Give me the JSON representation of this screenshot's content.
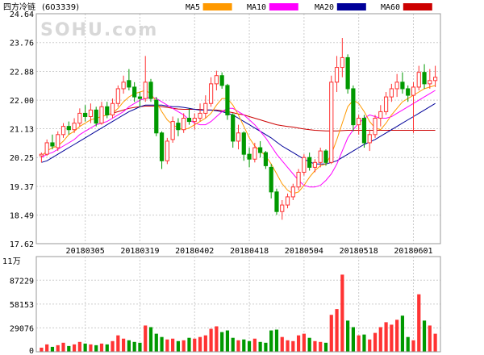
{
  "header": {
    "title": "四方冷链",
    "code": "(603339)",
    "watermark": "SOHU.com"
  },
  "colors": {
    "up": "#ff3333",
    "down": "#009900",
    "ma5": "#ff9900",
    "ma10": "#ff00ff",
    "ma20": "#000099",
    "ma60": "#cc0000",
    "grid": "#cccccc",
    "frame": "#999999"
  },
  "legend": [
    {
      "label": "MA5",
      "key": "ma5"
    },
    {
      "label": "MA10",
      "key": "ma10"
    },
    {
      "label": "MA20",
      "key": "ma20"
    },
    {
      "label": "MA60",
      "key": "ma60"
    }
  ],
  "chart_data": {
    "type": "candlestick",
    "price_axis": {
      "ticks": [
        "24.64",
        "23.76",
        "22.88",
        "22.00",
        "21.13",
        "20.25",
        "19.37",
        "18.49",
        "17.62"
      ],
      "ylim": [
        17.62,
        24.64
      ]
    },
    "volume_axis": {
      "unit": "11万",
      "ticks": [
        "87229",
        "58153",
        "29076",
        "0"
      ],
      "ylim": [
        0,
        116000
      ]
    },
    "x_labels": [
      {
        "label": "20180305",
        "index": 8
      },
      {
        "label": "20180319",
        "index": 18
      },
      {
        "label": "20180402",
        "index": 28
      },
      {
        "label": "20180418",
        "index": 38
      },
      {
        "label": "20180504",
        "index": 48
      },
      {
        "label": "20180518",
        "index": 58
      },
      {
        "label": "20180601",
        "index": 68
      }
    ],
    "ohlc": [
      [
        20.3,
        20.4,
        20.1,
        20.35
      ],
      [
        20.35,
        20.8,
        20.3,
        20.7
      ],
      [
        20.7,
        20.95,
        20.5,
        20.6
      ],
      [
        20.55,
        21.05,
        20.45,
        20.95
      ],
      [
        20.95,
        21.3,
        20.85,
        21.2
      ],
      [
        21.2,
        21.35,
        20.95,
        21.1
      ],
      [
        21.1,
        21.45,
        21.0,
        21.3
      ],
      [
        21.3,
        21.75,
        21.2,
        21.6
      ],
      [
        21.6,
        21.85,
        21.35,
        21.5
      ],
      [
        21.5,
        21.9,
        21.3,
        21.7
      ],
      [
        21.7,
        21.8,
        21.2,
        21.3
      ],
      [
        21.3,
        21.95,
        21.25,
        21.8
      ],
      [
        21.8,
        21.95,
        21.45,
        21.55
      ],
      [
        21.55,
        22.05,
        21.45,
        21.9
      ],
      [
        21.9,
        22.45,
        21.8,
        22.35
      ],
      [
        22.35,
        22.75,
        22.2,
        22.55
      ],
      [
        22.6,
        22.95,
        22.3,
        22.4
      ],
      [
        22.4,
        22.55,
        21.95,
        22.1
      ],
      [
        22.1,
        22.25,
        21.8,
        22.05
      ],
      [
        22.05,
        23.35,
        21.95,
        22.55
      ],
      [
        22.55,
        22.65,
        21.95,
        22.05
      ],
      [
        22.0,
        22.1,
        20.9,
        21.0
      ],
      [
        21.0,
        21.05,
        19.9,
        20.15
      ],
      [
        20.15,
        20.85,
        20.05,
        20.75
      ],
      [
        20.8,
        21.5,
        20.7,
        21.35
      ],
      [
        21.3,
        21.45,
        20.9,
        21.1
      ],
      [
        21.1,
        21.6,
        21.0,
        21.45
      ],
      [
        21.45,
        21.75,
        21.25,
        21.35
      ],
      [
        21.35,
        21.6,
        21.1,
        21.45
      ],
      [
        21.45,
        21.9,
        21.35,
        21.6
      ],
      [
        21.6,
        22.15,
        21.45,
        21.9
      ],
      [
        21.9,
        22.7,
        21.8,
        22.5
      ],
      [
        22.5,
        22.9,
        22.3,
        22.75
      ],
      [
        22.75,
        22.85,
        22.35,
        22.45
      ],
      [
        22.45,
        22.5,
        21.4,
        21.55
      ],
      [
        21.55,
        21.6,
        20.55,
        20.75
      ],
      [
        20.75,
        21.25,
        20.5,
        21.0
      ],
      [
        21.0,
        21.05,
        20.15,
        20.35
      ],
      [
        20.35,
        20.55,
        19.95,
        20.2
      ],
      [
        20.2,
        20.7,
        20.1,
        20.55
      ],
      [
        20.55,
        20.75,
        20.25,
        20.4
      ],
      [
        20.4,
        20.45,
        19.9,
        20.0
      ],
      [
        19.95,
        20.05,
        19.0,
        19.2
      ],
      [
        19.2,
        19.3,
        18.5,
        18.6
      ],
      [
        18.6,
        18.95,
        18.35,
        18.8
      ],
      [
        18.8,
        19.15,
        18.7,
        19.05
      ],
      [
        19.05,
        19.45,
        18.95,
        19.35
      ],
      [
        19.35,
        19.9,
        19.25,
        19.8
      ],
      [
        19.8,
        20.35,
        19.7,
        20.25
      ],
      [
        20.25,
        20.4,
        19.85,
        19.95
      ],
      [
        19.95,
        20.2,
        19.8,
        20.1
      ],
      [
        20.1,
        20.55,
        19.95,
        20.45
      ],
      [
        20.45,
        20.5,
        20.0,
        20.1
      ],
      [
        20.1,
        22.75,
        20.05,
        22.55
      ],
      [
        22.55,
        23.35,
        22.25,
        23.0
      ],
      [
        23.0,
        23.9,
        22.7,
        23.3
      ],
      [
        23.3,
        23.4,
        22.2,
        22.35
      ],
      [
        22.35,
        22.45,
        21.05,
        21.25
      ],
      [
        21.25,
        21.55,
        20.95,
        21.45
      ],
      [
        21.45,
        21.55,
        20.55,
        20.7
      ],
      [
        20.7,
        21.1,
        20.45,
        20.95
      ],
      [
        20.95,
        21.55,
        20.85,
        21.45
      ],
      [
        21.45,
        21.85,
        21.2,
        21.65
      ],
      [
        21.65,
        22.25,
        21.55,
        22.1
      ],
      [
        22.1,
        22.5,
        21.95,
        22.35
      ],
      [
        22.35,
        22.8,
        22.1,
        22.55
      ],
      [
        22.55,
        22.85,
        22.2,
        22.35
      ],
      [
        22.35,
        22.45,
        21.95,
        22.15
      ],
      [
        22.15,
        22.55,
        21.0,
        22.4
      ],
      [
        22.4,
        23.05,
        22.3,
        22.85
      ],
      [
        22.85,
        23.1,
        22.35,
        22.5
      ],
      [
        22.5,
        22.95,
        22.35,
        22.6
      ],
      [
        22.6,
        23.05,
        22.4,
        22.7
      ]
    ],
    "ma5": [
      20.3,
      20.45,
      20.55,
      20.6,
      20.75,
      20.95,
      21.05,
      21.2,
      21.3,
      21.4,
      21.45,
      21.5,
      21.55,
      21.6,
      21.75,
      21.95,
      22.1,
      22.2,
      22.25,
      22.3,
      22.2,
      21.95,
      21.65,
      21.4,
      21.25,
      21.15,
      21.1,
      21.15,
      21.25,
      21.35,
      21.45,
      21.6,
      21.85,
      22.05,
      22.05,
      21.85,
      21.55,
      21.2,
      20.85,
      20.6,
      20.45,
      20.3,
      20.05,
      19.75,
      19.45,
      19.25,
      19.15,
      19.2,
      19.4,
      19.65,
      19.85,
      20.0,
      20.05,
      20.35,
      20.8,
      21.3,
      21.8,
      22.0,
      21.9,
      21.65,
      21.35,
      21.15,
      21.1,
      21.3,
      21.55,
      21.75,
      21.95,
      22.05,
      22.15,
      22.25,
      22.35,
      22.4,
      22.45
    ],
    "ma10": [
      20.25,
      20.35,
      20.4,
      20.5,
      20.6,
      20.7,
      20.8,
      20.95,
      21.05,
      21.15,
      21.25,
      21.3,
      21.35,
      21.45,
      21.55,
      21.65,
      21.8,
      21.9,
      22.0,
      22.05,
      22.1,
      22.05,
      21.95,
      21.85,
      21.75,
      21.65,
      21.55,
      21.4,
      21.3,
      21.25,
      21.25,
      21.35,
      21.5,
      21.65,
      21.75,
      21.75,
      21.65,
      21.55,
      21.4,
      21.25,
      21.05,
      20.85,
      20.6,
      20.35,
      20.15,
      19.95,
      19.75,
      19.55,
      19.4,
      19.35,
      19.35,
      19.4,
      19.55,
      19.75,
      20.05,
      20.45,
      20.85,
      21.1,
      21.3,
      21.45,
      21.55,
      21.5,
      21.45,
      21.45,
      21.5,
      21.6,
      21.7,
      21.8,
      21.9,
      22.0,
      22.1,
      22.2,
      22.3
    ],
    "ma20": [
      20.1,
      20.15,
      20.25,
      20.35,
      20.45,
      20.55,
      20.65,
      20.75,
      20.85,
      20.95,
      21.05,
      21.15,
      21.25,
      21.35,
      21.45,
      21.55,
      21.65,
      21.72,
      21.8,
      21.85,
      21.85,
      21.85,
      21.85,
      21.82,
      21.8,
      21.8,
      21.78,
      21.75,
      21.72,
      21.7,
      21.7,
      21.7,
      21.68,
      21.65,
      21.6,
      21.55,
      21.45,
      21.35,
      21.25,
      21.15,
      21.05,
      20.95,
      20.85,
      20.72,
      20.6,
      20.5,
      20.4,
      20.3,
      20.2,
      20.12,
      20.05,
      20.05,
      20.05,
      20.1,
      20.15,
      20.25,
      20.35,
      20.45,
      20.55,
      20.65,
      20.72,
      20.8,
      20.9,
      21.0,
      21.1,
      21.2,
      21.3,
      21.4,
      21.5,
      21.6,
      21.7,
      21.8,
      21.9
    ],
    "ma60": [
      null,
      null,
      null,
      null,
      null,
      null,
      null,
      null,
      null,
      null,
      null,
      null,
      null,
      21.6,
      21.65,
      21.7,
      21.75,
      21.78,
      21.8,
      21.82,
      21.82,
      21.82,
      21.8,
      21.78,
      21.75,
      21.73,
      21.72,
      21.72,
      21.72,
      21.72,
      21.7,
      21.7,
      21.7,
      21.68,
      21.65,
      21.62,
      21.58,
      21.55,
      21.5,
      21.45,
      21.4,
      21.35,
      21.3,
      21.25,
      21.22,
      21.2,
      21.18,
      21.15,
      21.12,
      21.1,
      21.08,
      21.07,
      21.06,
      21.06,
      21.06,
      21.07,
      21.08,
      21.08,
      21.08,
      21.08,
      21.08,
      21.08,
      21.08,
      21.08,
      21.08,
      21.08,
      21.08,
      21.08,
      21.08,
      21.08,
      21.08,
      21.08,
      21.08
    ],
    "volume": [
      5000,
      9000,
      6000,
      8000,
      11000,
      7000,
      9000,
      12000,
      10000,
      9000,
      8000,
      10000,
      9000,
      13000,
      20000,
      16000,
      14000,
      12000,
      11000,
      32000,
      30000,
      22000,
      18000,
      15000,
      16000,
      13000,
      14000,
      17000,
      16000,
      18000,
      20000,
      28000,
      31000,
      24000,
      26000,
      17000,
      14000,
      15000,
      13000,
      16000,
      12000,
      11000,
      26000,
      27000,
      18000,
      14000,
      13000,
      20000,
      22000,
      17000,
      13000,
      12000,
      11000,
      45000,
      52000,
      94000,
      38000,
      30000,
      20000,
      21000,
      15000,
      23000,
      30000,
      36000,
      33000,
      39000,
      44000,
      18000,
      14000,
      70000,
      38000,
      32000,
      22000
    ]
  }
}
